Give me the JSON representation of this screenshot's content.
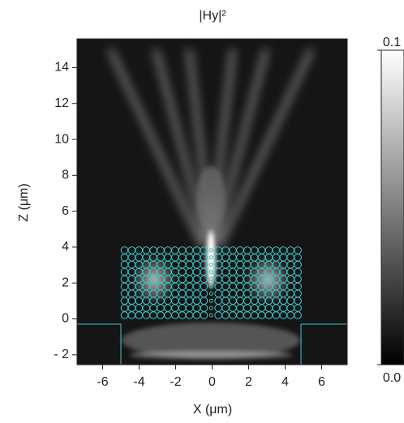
{
  "chart_data": {
    "type": "heatmap",
    "title": "|Hy|²",
    "xlabel": "X (μm)",
    "ylabel": "Z (μm)",
    "xlim": [
      -7.4,
      7.4
    ],
    "xticks": [
      -6,
      -4,
      -2,
      0,
      2,
      4,
      6
    ],
    "ylim": [
      -2.55,
      15.6
    ],
    "yticks": [
      {
        "value": -2,
        "label": "- 2"
      },
      0,
      2,
      4,
      6,
      8,
      10,
      12,
      14
    ],
    "colorbar": {
      "lim": [
        0,
        0.1
      ],
      "ticks": [
        {
          "value": 0,
          "label": "0.0"
        },
        0.1
      ]
    }
  }
}
